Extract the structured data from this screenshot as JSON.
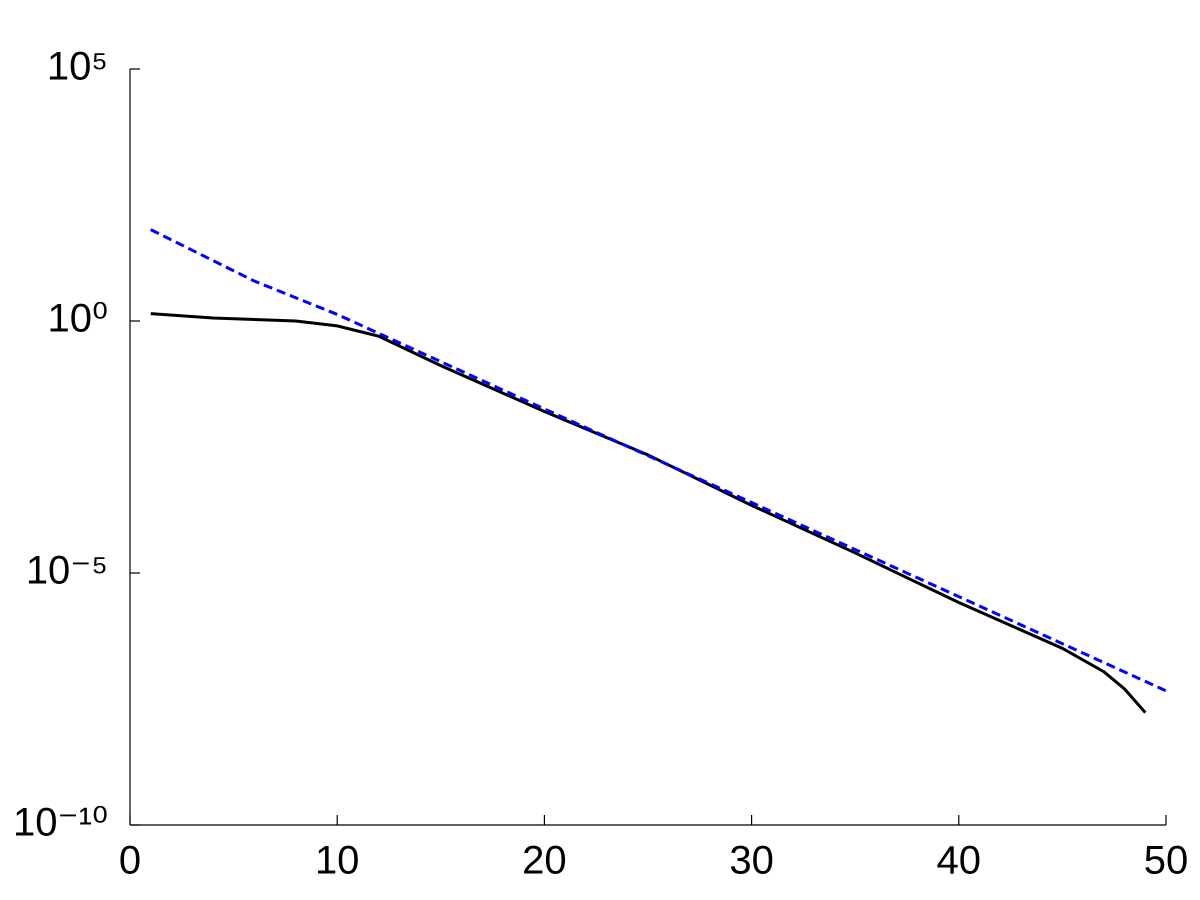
{
  "chart_data": {
    "type": "line",
    "series": [
      {
        "color": "#000000",
        "dash": "solid",
        "x": [
          1,
          4,
          8,
          10,
          12,
          15,
          20,
          25,
          30,
          35,
          40,
          45,
          47,
          48,
          49
        ],
        "values": [
          1.4,
          1.15,
          1.0,
          0.8,
          0.5,
          0.13,
          0.016,
          0.0022,
          0.00022,
          2.5e-05,
          2.6e-06,
          3.2e-07,
          1.1e-07,
          5e-08,
          1.7e-08
        ]
      },
      {
        "color": "#0000ff",
        "dash": "dashed",
        "x": [
          1,
          6,
          10,
          20,
          30,
          40,
          50
        ],
        "values": [
          65,
          6.2,
          1.35,
          0.018,
          0.00025,
          3.4e-06,
          4.6e-08
        ]
      }
    ],
    "xlim": [
      0,
      50
    ],
    "xticks": [
      0,
      10,
      20,
      30,
      40,
      50
    ],
    "ylim": [
      1e-10,
      100000
    ],
    "ylog": true,
    "yticks": [
      {
        "value": 1e-10,
        "label": "10⁻¹⁰"
      },
      {
        "value": 1e-05,
        "label": "10⁻⁵"
      },
      {
        "value": 1,
        "label": "10⁰"
      },
      {
        "value": 100000,
        "label": "10⁵"
      }
    ],
    "grid": false
  }
}
